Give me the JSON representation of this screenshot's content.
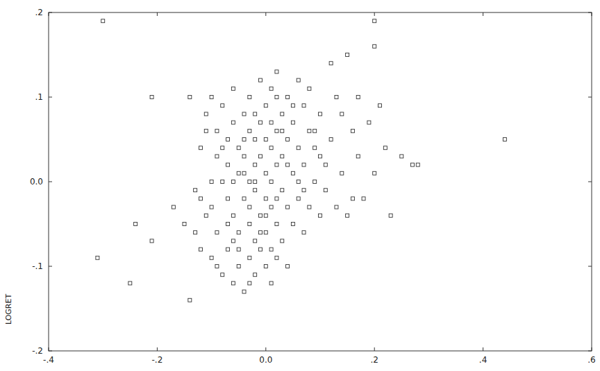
{
  "chart_data": {
    "type": "scatter",
    "y_label": "LOGRET",
    "marker": "square",
    "color": "#333333",
    "grid": false,
    "xlim": [
      -0.4,
      0.6
    ],
    "ylim": [
      -0.2,
      0.2
    ],
    "xticks": [
      {
        "value": -0.4,
        "label": "-.4"
      },
      {
        "value": -0.2,
        "label": "-.2"
      },
      {
        "value": 0,
        "label": "0.0"
      },
      {
        "value": 0.2,
        "label": ".2"
      },
      {
        "value": 0.4,
        "label": ".4"
      },
      {
        "value": 0.6,
        "label": ".6"
      }
    ],
    "yticks": [
      {
        "value": -0.2,
        "label": "-.2"
      },
      {
        "value": -0.1,
        "label": "-.1"
      },
      {
        "value": 0,
        "label": "0.0"
      },
      {
        "value": 0.1,
        "label": ".1"
      },
      {
        "value": 0.2,
        "label": ".2"
      }
    ],
    "x": [
      -0.3,
      -0.21,
      -0.31,
      -0.25,
      -0.24,
      -0.21,
      -0.17,
      -0.14,
      -0.15,
      -0.13,
      -0.14,
      -0.1,
      -0.11,
      -0.12,
      -0.12,
      -0.11,
      -0.1,
      -0.1,
      -0.09,
      -0.09,
      -0.09,
      -0.08,
      -0.08,
      -0.08,
      -0.07,
      -0.07,
      -0.07,
      -0.07,
      -0.06,
      -0.06,
      -0.06,
      -0.06,
      -0.05,
      -0.05,
      -0.05,
      -0.05,
      -0.04,
      -0.04,
      -0.04,
      -0.04,
      -0.03,
      -0.03,
      -0.03,
      -0.03,
      -0.03,
      -0.02,
      -0.02,
      -0.02,
      -0.02,
      -0.02,
      -0.01,
      -0.01,
      -0.01,
      -0.01,
      -0.01,
      0.0,
      0.0,
      0.0,
      0.0,
      0.0,
      0.01,
      0.01,
      0.01,
      0.01,
      0.01,
      0.02,
      0.02,
      0.02,
      0.02,
      0.02,
      0.03,
      0.03,
      0.03,
      0.03,
      0.04,
      0.04,
      0.04,
      0.04,
      0.05,
      0.05,
      0.05,
      0.06,
      0.06,
      0.06,
      0.07,
      0.07,
      0.07,
      0.08,
      0.08,
      0.08,
      0.09,
      0.09,
      0.1,
      0.1,
      0.11,
      0.11,
      0.12,
      0.12,
      0.13,
      0.13,
      0.14,
      0.14,
      0.15,
      0.15,
      0.16,
      0.17,
      0.17,
      0.18,
      0.19,
      0.2,
      0.2,
      0.21,
      0.22,
      0.23,
      0.25,
      0.27,
      0.28,
      0.44,
      0.2,
      0.16,
      -0.04,
      -0.02,
      0.0,
      -0.06,
      -0.03,
      0.02,
      -0.01,
      -0.05,
      0.03,
      -0.08,
      -0.1,
      -0.11,
      0.05,
      0.06,
      -0.02,
      0.01,
      0.0,
      -0.04,
      0.04,
      -0.07,
      -0.09,
      -0.06,
      0.01,
      -0.03,
      0.02,
      0.07,
      0.09,
      0.1,
      -0.12,
      -0.13
    ],
    "values": [
      0.19,
      0.1,
      -0.09,
      -0.12,
      -0.05,
      -0.07,
      -0.03,
      -0.14,
      -0.05,
      -0.06,
      0.1,
      0.1,
      0.08,
      -0.02,
      -0.08,
      -0.04,
      -0.09,
      -0.03,
      0.06,
      0.03,
      -0.06,
      -0.11,
      0.0,
      0.09,
      0.05,
      -0.02,
      -0.08,
      0.02,
      0.11,
      -0.04,
      -0.12,
      0.07,
      0.01,
      -0.06,
      0.04,
      -0.1,
      0.08,
      -0.02,
      -0.13,
      0.03,
      0.06,
      -0.05,
      0.0,
      -0.09,
      0.1,
      0.02,
      -0.07,
      0.05,
      -0.11,
      -0.01,
      0.12,
      0.03,
      -0.04,
      -0.08,
      0.07,
      -0.02,
      0.01,
      -0.1,
      0.09,
      -0.06,
      0.04,
      -0.03,
      0.11,
      -0.12,
      0.0,
      0.06,
      -0.05,
      0.02,
      -0.09,
      0.13,
      -0.01,
      0.08,
      -0.07,
      0.03,
      0.05,
      -0.03,
      0.1,
      -0.1,
      0.01,
      0.07,
      -0.05,
      0.12,
      -0.02,
      0.04,
      0.09,
      -0.06,
      0.02,
      0.06,
      -0.03,
      0.11,
      0.0,
      0.04,
      -0.04,
      0.08,
      0.02,
      -0.01,
      0.14,
      0.05,
      -0.03,
      0.1,
      0.01,
      0.08,
      0.15,
      -0.04,
      0.06,
      0.03,
      0.1,
      -0.02,
      0.07,
      0.19,
      0.01,
      0.09,
      0.04,
      -0.04,
      0.03,
      0.02,
      0.02,
      0.05,
      0.16,
      -0.02,
      0.05,
      0.08,
      0.05,
      0.0,
      -0.03,
      -0.02,
      -0.06,
      -0.08,
      0.06,
      0.04,
      0.0,
      0.06,
      0.09,
      0.0,
      0.0,
      0.07,
      -0.04,
      0.01,
      0.02,
      -0.05,
      -0.1,
      -0.07,
      -0.08,
      -0.12,
      0.1,
      -0.01,
      0.06,
      0.03,
      0.04,
      -0.01
    ]
  }
}
